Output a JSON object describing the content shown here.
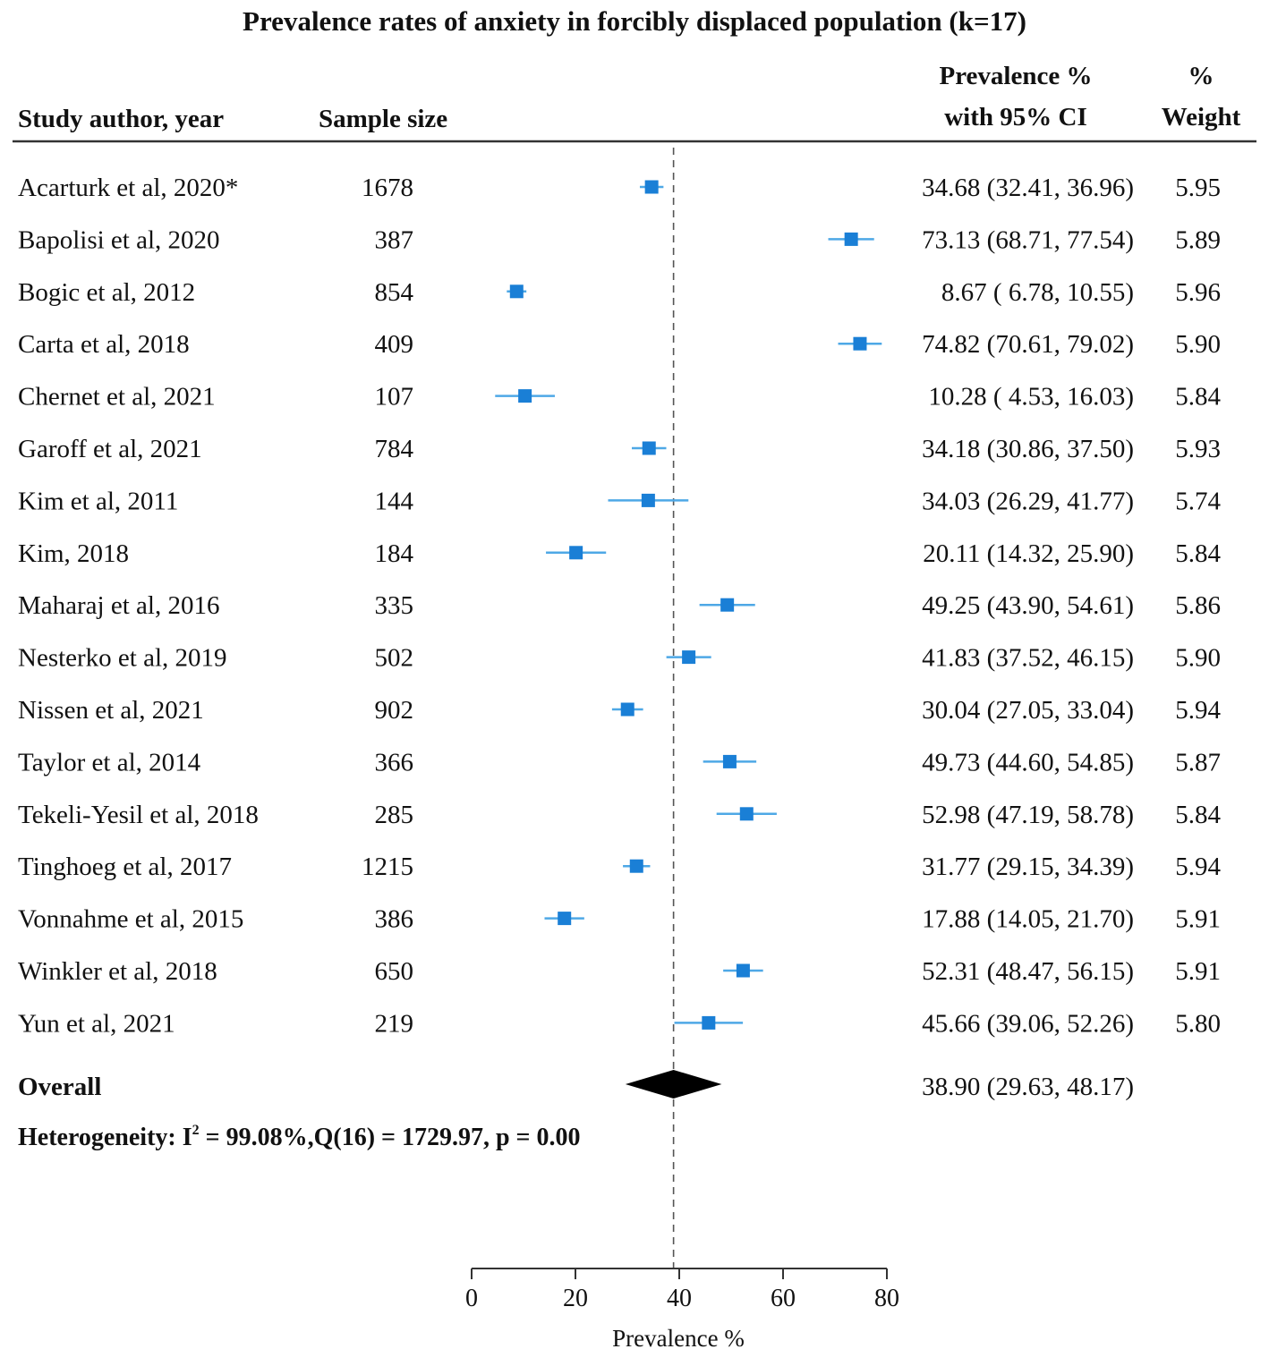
{
  "chart_data": {
    "type": "forest",
    "title": "Prevalence rates of anxiety in forcibly displaced population (k=17)",
    "headers": {
      "study": "Study author, year",
      "sample": "Sample size",
      "prev_line1": "Prevalence %",
      "prev_line2": "with 95% CI",
      "weight_line1": "%",
      "weight_line2": "Weight"
    },
    "xlabel": "Prevalence %",
    "xlim": [
      0,
      80
    ],
    "xticks": [
      0,
      20,
      40,
      60,
      80
    ],
    "reference_line": 38.9,
    "marker_color": "#1a7fd6",
    "line_color": "#4ea8e6",
    "studies": [
      {
        "name": "Acarturk et al, 2020*",
        "n": "1678",
        "est": 34.68,
        "lo": 32.41,
        "hi": 36.96,
        "ci_text": "34.68 (32.41,  36.96)",
        "weight": "5.95"
      },
      {
        "name": "Bapolisi et al, 2020",
        "n": "387",
        "est": 73.13,
        "lo": 68.71,
        "hi": 77.54,
        "ci_text": "73.13 (68.71,  77.54)",
        "weight": "5.89"
      },
      {
        "name": "Bogic et al,  2012",
        "n": "854",
        "est": 8.67,
        "lo": 6.78,
        "hi": 10.55,
        "ci_text": "8.67  ( 6.78,  10.55)",
        "weight": "5.96"
      },
      {
        "name": "Carta et al, 2018",
        "n": "409",
        "est": 74.82,
        "lo": 70.61,
        "hi": 79.02,
        "ci_text": "74.82 (70.61,  79.02)",
        "weight": "5.90"
      },
      {
        "name": "Chernet et al, 2021",
        "n": "107",
        "est": 10.28,
        "lo": 4.53,
        "hi": 16.03,
        "ci_text": "10.28  ( 4.53,  16.03)",
        "weight": "5.84"
      },
      {
        "name": "Garoff et al, 2021",
        "n": "784",
        "est": 34.18,
        "lo": 30.86,
        "hi": 37.5,
        "ci_text": "34.18 (30.86,  37.50)",
        "weight": "5.93"
      },
      {
        "name": "Kim et al, 2011",
        "n": "144",
        "est": 34.03,
        "lo": 26.29,
        "hi": 41.77,
        "ci_text": "34.03 (26.29,  41.77)",
        "weight": "5.74"
      },
      {
        "name": "Kim, 2018",
        "n": "184",
        "est": 20.11,
        "lo": 14.32,
        "hi": 25.9,
        "ci_text": "20.11 (14.32,  25.90)",
        "weight": "5.84"
      },
      {
        "name": "Maharaj et al, 2016",
        "n": "335",
        "est": 49.25,
        "lo": 43.9,
        "hi": 54.61,
        "ci_text": "49.25 (43.90,  54.61)",
        "weight": "5.86"
      },
      {
        "name": "Nesterko et al, 2019",
        "n": "502",
        "est": 41.83,
        "lo": 37.52,
        "hi": 46.15,
        "ci_text": "41.83 (37.52,  46.15)",
        "weight": "5.90"
      },
      {
        "name": "Nissen et al, 2021",
        "n": "902",
        "est": 30.04,
        "lo": 27.05,
        "hi": 33.04,
        "ci_text": "30.04 (27.05,  33.04)",
        "weight": "5.94"
      },
      {
        "name": "Taylor et al, 2014",
        "n": "366",
        "est": 49.73,
        "lo": 44.6,
        "hi": 54.85,
        "ci_text": "49.73 (44.60,  54.85)",
        "weight": "5.87"
      },
      {
        "name": "Tekeli-Yesil et al, 2018",
        "n": "285",
        "est": 52.98,
        "lo": 47.19,
        "hi": 58.78,
        "ci_text": "52.98 (47.19,  58.78)",
        "weight": "5.84"
      },
      {
        "name": "Tinghoeg et al, 2017",
        "n": "1215",
        "est": 31.77,
        "lo": 29.15,
        "hi": 34.39,
        "ci_text": "31.77 (29.15,  34.39)",
        "weight": "5.94"
      },
      {
        "name": "Vonnahme et al, 2015",
        "n": "386",
        "est": 17.88,
        "lo": 14.05,
        "hi": 21.7,
        "ci_text": "17.88 (14.05,  21.70)",
        "weight": "5.91"
      },
      {
        "name": "Winkler et al, 2018",
        "n": "650",
        "est": 52.31,
        "lo": 48.47,
        "hi": 56.15,
        "ci_text": "52.31 (48.47,  56.15)",
        "weight": "5.91"
      },
      {
        "name": "Yun et al, 2021",
        "n": "219",
        "est": 45.66,
        "lo": 39.06,
        "hi": 52.26,
        "ci_text": "45.66 (39.06,  52.26)",
        "weight": "5.80"
      }
    ],
    "overall": {
      "label": "Overall",
      "est": 38.9,
      "lo": 29.63,
      "hi": 48.17,
      "ci_text": "38.90 (29.63,  48.17)"
    },
    "heterogeneity": {
      "prefix": "Heterogeneity: I",
      "sup": "2",
      "rest": " = 99.08%,Q(16) = 1729.97, p = 0.00"
    }
  }
}
